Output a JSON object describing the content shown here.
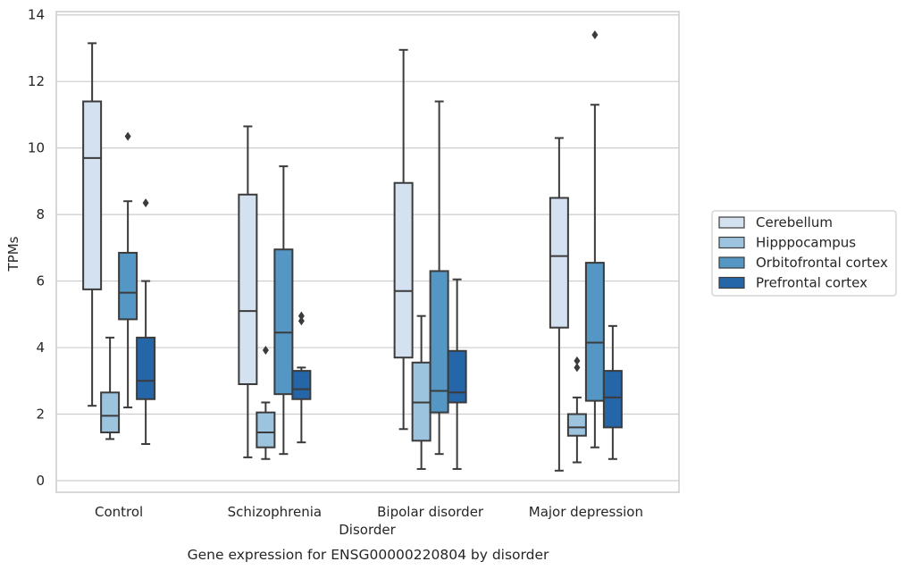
{
  "chart_data": {
    "type": "box",
    "title": "",
    "caption": "Gene expression for ENSG00000220804 by disorder",
    "xlabel": "Disorder",
    "ylabel": "TPMs",
    "ylim": [
      -0.35,
      14.1
    ],
    "yticks": [
      0,
      2,
      4,
      6,
      8,
      10,
      12,
      14
    ],
    "grid": true,
    "legend_position": "right",
    "categories": [
      "Control",
      "Schizophrenia",
      "Bipolar disorder",
      "Major depression"
    ],
    "series": [
      {
        "name": "Cerebellum",
        "color": "#d4e1f0",
        "boxes": [
          {
            "whislo": 2.25,
            "q1": 5.75,
            "med": 9.7,
            "q3": 11.4,
            "whishi": 13.15,
            "fliers": []
          },
          {
            "whislo": 0.7,
            "q1": 2.9,
            "med": 5.1,
            "q3": 8.6,
            "whishi": 10.65,
            "fliers": []
          },
          {
            "whislo": 1.55,
            "q1": 3.7,
            "med": 5.7,
            "q3": 8.95,
            "whishi": 12.95,
            "fliers": []
          },
          {
            "whislo": 0.3,
            "q1": 4.6,
            "med": 6.75,
            "q3": 8.5,
            "whishi": 10.3,
            "fliers": []
          }
        ]
      },
      {
        "name": "Hipppocampus",
        "color": "#9dc4de",
        "boxes": [
          {
            "whislo": 1.25,
            "q1": 1.45,
            "med": 1.95,
            "q3": 2.65,
            "whishi": 4.3,
            "fliers": []
          },
          {
            "whislo": 0.65,
            "q1": 1.0,
            "med": 1.45,
            "q3": 2.05,
            "whishi": 2.35,
            "fliers": [
              3.92
            ]
          },
          {
            "whislo": 0.35,
            "q1": 1.2,
            "med": 2.35,
            "q3": 3.55,
            "whishi": 4.95,
            "fliers": []
          },
          {
            "whislo": 0.55,
            "q1": 1.35,
            "med": 1.6,
            "q3": 2.0,
            "whishi": 2.5,
            "fliers": [
              3.4,
              3.6
            ]
          }
        ]
      },
      {
        "name": "Orbitofrontal cortex",
        "color": "#5496c4",
        "boxes": [
          {
            "whislo": 2.2,
            "q1": 4.85,
            "med": 5.65,
            "q3": 6.85,
            "whishi": 8.4,
            "fliers": [
              10.35
            ]
          },
          {
            "whislo": 0.8,
            "q1": 2.6,
            "med": 4.45,
            "q3": 6.95,
            "whishi": 9.45,
            "fliers": []
          },
          {
            "whislo": 0.8,
            "q1": 2.05,
            "med": 2.7,
            "q3": 6.3,
            "whishi": 11.4,
            "fliers": []
          },
          {
            "whislo": 1.0,
            "q1": 2.4,
            "med": 4.15,
            "q3": 6.55,
            "whishi": 11.3,
            "fliers": [
              13.4
            ]
          }
        ]
      },
      {
        "name": "Prefrontal cortex",
        "color": "#2566a8",
        "boxes": [
          {
            "whislo": 1.1,
            "q1": 2.45,
            "med": 3.0,
            "q3": 4.3,
            "whishi": 6.0,
            "fliers": [
              8.35
            ]
          },
          {
            "whislo": 1.15,
            "q1": 2.45,
            "med": 2.75,
            "q3": 3.3,
            "whishi": 3.4,
            "fliers": [
              4.8,
              4.95
            ]
          },
          {
            "whislo": 0.35,
            "q1": 2.35,
            "med": 2.65,
            "q3": 3.9,
            "whishi": 6.05,
            "fliers": []
          },
          {
            "whislo": 0.65,
            "q1": 1.6,
            "med": 2.5,
            "q3": 3.3,
            "whishi": 4.65,
            "fliers": []
          }
        ]
      }
    ]
  }
}
